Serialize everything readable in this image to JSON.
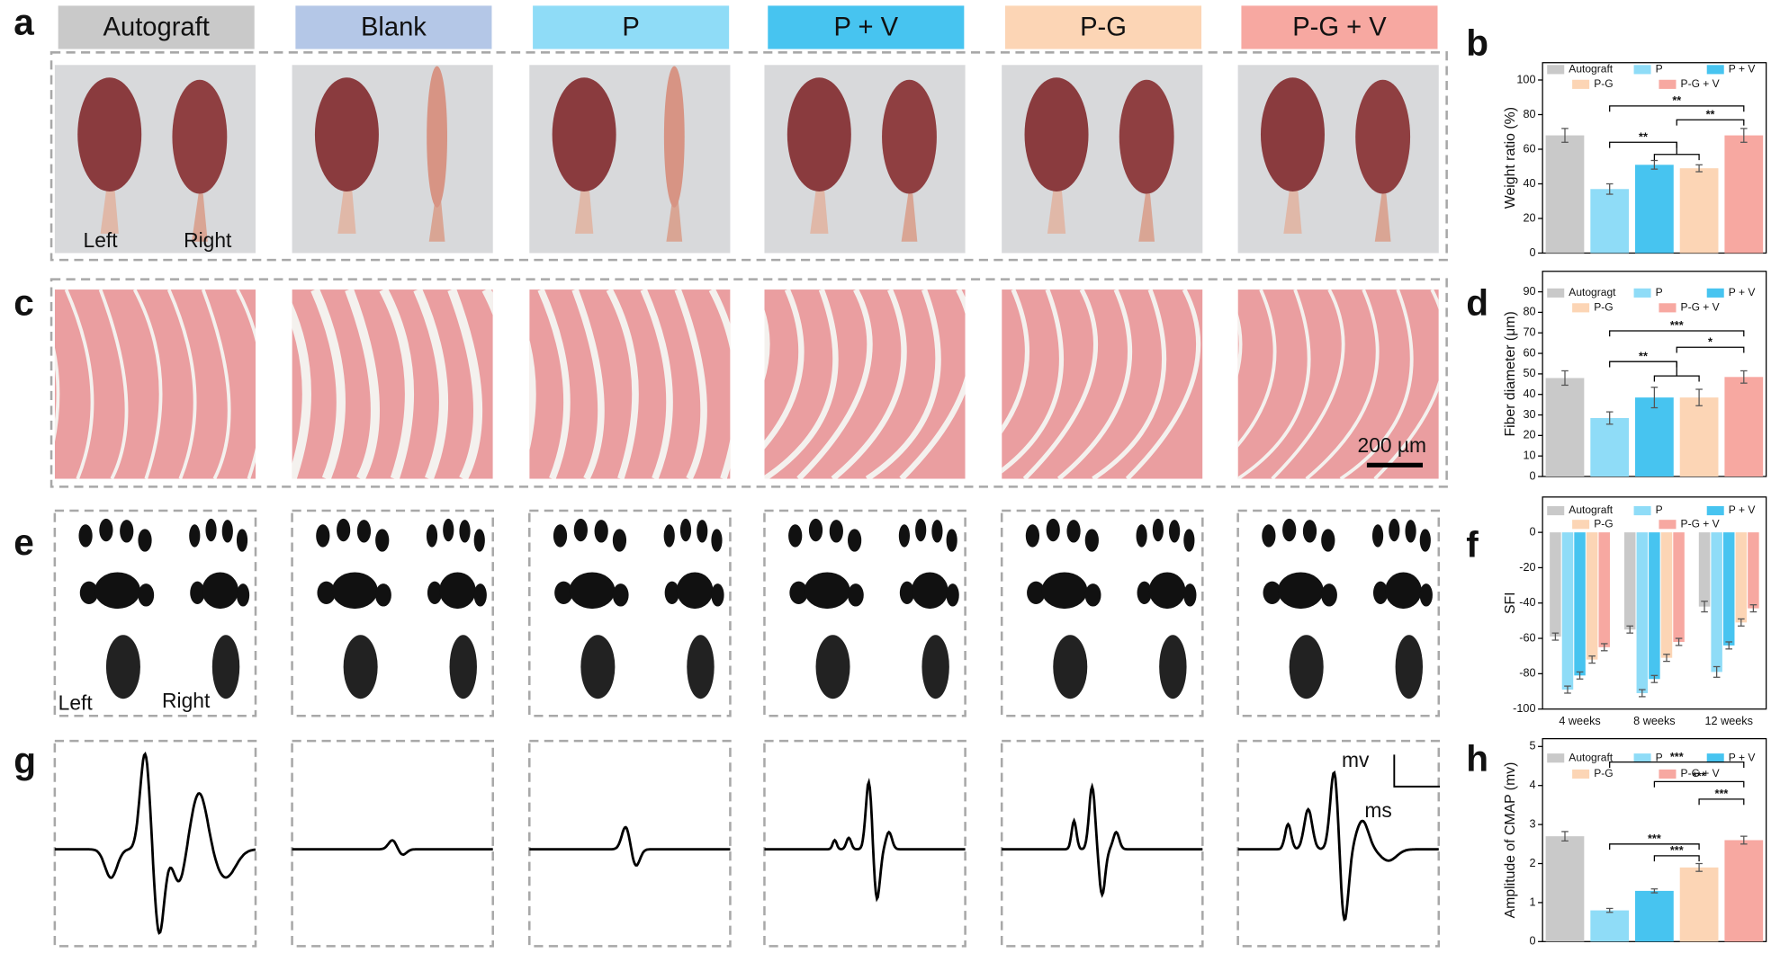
{
  "figure": {
    "panel_labels": [
      "a",
      "b",
      "c",
      "d",
      "e",
      "f",
      "g",
      "h"
    ],
    "groups": [
      "Autograft",
      "Blank",
      "P",
      "P + V",
      "P-G",
      "P-G + V"
    ],
    "group_colors": [
      "#c9c9c9",
      "#b4c7e7",
      "#8fdcf7",
      "#47c4f0",
      "#fcd5b5",
      "#f7a8a1"
    ],
    "side_labels": [
      "Left",
      "Right"
    ],
    "scale_bar": "200 µm",
    "trace_axes": [
      "mv",
      "ms"
    ]
  },
  "chart_data": [
    {
      "type": "bar",
      "ylabel": "Weight ratio (%)",
      "categories": [
        "Autograft",
        "P",
        "P + V",
        "P-G",
        "P-G + V"
      ],
      "colors": [
        "#c9c9c9",
        "#8fdcf7",
        "#47c4f0",
        "#fcd5b5",
        "#f7a8a1"
      ],
      "values": [
        68,
        37,
        51,
        49,
        68
      ],
      "errors": [
        4,
        3,
        2.5,
        2,
        4
      ],
      "ylim": [
        0,
        110
      ],
      "yticks": [
        0,
        20,
        40,
        60,
        80,
        100
      ],
      "annotations": [
        "**",
        "**",
        "**"
      ]
    },
    {
      "type": "bar",
      "ylabel": "Fiber diameter (μm)",
      "categories": [
        "Autogragt",
        "P",
        "P + V",
        "P-G",
        "P-G + V"
      ],
      "colors": [
        "#c9c9c9",
        "#8fdcf7",
        "#47c4f0",
        "#fcd5b5",
        "#f7a8a1"
      ],
      "values": [
        48,
        28.5,
        38.5,
        38.5,
        48.5
      ],
      "errors": [
        3.5,
        3,
        5,
        4,
        3
      ],
      "ylim": [
        0,
        100
      ],
      "yticks": [
        0,
        10,
        20,
        30,
        40,
        50,
        60,
        70,
        80,
        90
      ],
      "annotations": [
        "***",
        "**",
        "*"
      ]
    },
    {
      "type": "grouped_bar",
      "ylabel": "SFI",
      "categories": [
        "4 weeks",
        "8 weeks",
        "12 weeks"
      ],
      "series": [
        {
          "name": "Autograft",
          "color": "#c9c9c9",
          "values": [
            -59,
            -55,
            -42
          ],
          "errors": [
            2,
            2,
            3
          ]
        },
        {
          "name": "P",
          "color": "#8fdcf7",
          "values": [
            -89,
            -91,
            -79
          ],
          "errors": [
            2,
            2,
            3
          ]
        },
        {
          "name": "P + V",
          "color": "#47c4f0",
          "values": [
            -81,
            -83,
            -64
          ],
          "errors": [
            2,
            2,
            2
          ]
        },
        {
          "name": "P-G",
          "color": "#fcd5b5",
          "values": [
            -72,
            -71,
            -51
          ],
          "errors": [
            2,
            2,
            2
          ]
        },
        {
          "name": "P-G + V",
          "color": "#f7a8a1",
          "values": [
            -65,
            -62,
            -43
          ],
          "errors": [
            2,
            2,
            2
          ]
        }
      ],
      "ylim": [
        -100,
        20
      ],
      "yticks": [
        0,
        -20,
        -40,
        -60,
        -80,
        -100
      ]
    },
    {
      "type": "bar",
      "ylabel": "Amplitude of CMAP (mv)",
      "categories": [
        "Autograft",
        "P",
        "P + V",
        "P-G",
        "P-G + V"
      ],
      "colors": [
        "#c9c9c9",
        "#8fdcf7",
        "#47c4f0",
        "#fcd5b5",
        "#f7a8a1"
      ],
      "values": [
        2.7,
        0.8,
        1.3,
        1.9,
        2.6
      ],
      "errors": [
        0.12,
        0.05,
        0.05,
        0.1,
        0.1
      ],
      "ylim": [
        0,
        5.2
      ],
      "yticks": [
        0,
        1,
        2,
        3,
        4,
        5
      ],
      "annotations": [
        "***",
        "***",
        "***",
        "***",
        "***"
      ]
    }
  ]
}
